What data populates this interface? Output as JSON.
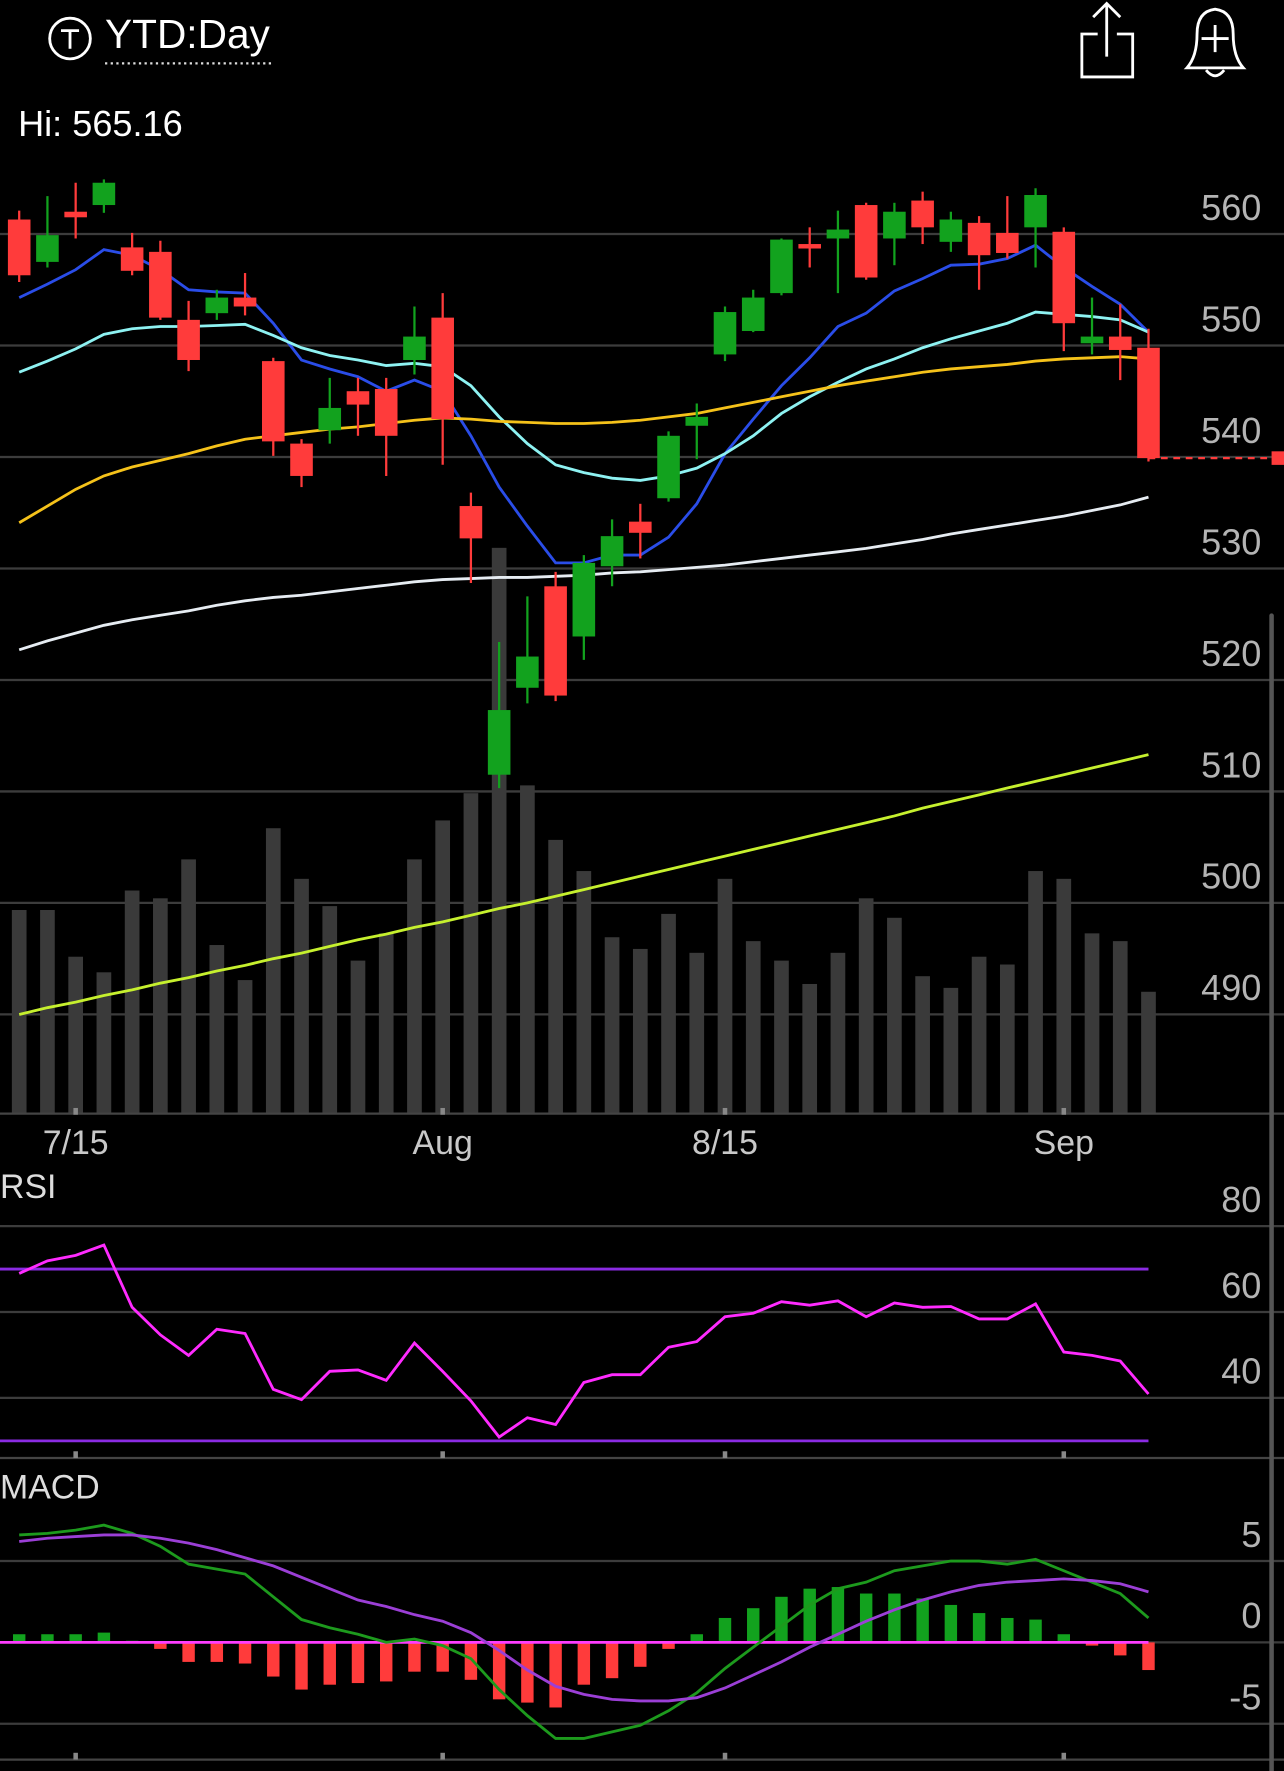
{
  "header": {
    "timeframe": "YTD:Day",
    "high_label": "Hi: 565.16"
  },
  "chart_data": [
    {
      "type": "candlestick",
      "categories": [
        null,
        null,
        "7/15",
        null,
        null,
        null,
        null,
        null,
        null,
        null,
        null,
        null,
        null,
        null,
        null,
        "Aug",
        null,
        null,
        null,
        null,
        null,
        null,
        null,
        null,
        null,
        "8/15",
        null,
        null,
        null,
        null,
        null,
        null,
        null,
        null,
        null,
        null,
        null,
        "Sep",
        null,
        null,
        null
      ],
      "open": [
        561.3,
        557.5,
        562.0,
        562.6,
        558.8,
        558.4,
        552.3,
        552.9,
        554.3,
        548.6,
        541.2,
        542.4,
        545.9,
        546.1,
        548.7,
        552.5,
        535.6,
        511.5,
        519.3,
        528.4,
        523.9,
        530.2,
        534.2,
        536.3,
        542.8,
        549.2,
        551.3,
        554.7,
        559.1,
        559.6,
        562.6,
        559.6,
        563.0,
        559.3,
        561.0,
        560.1,
        560.6,
        560.2,
        550.2,
        550.8,
        549.8
      ],
      "high": [
        562.1,
        563.4,
        564.6,
        564.9,
        560.1,
        559.4,
        554.0,
        555.0,
        556.5,
        548.9,
        541.6,
        547.1,
        547.1,
        547.1,
        553.5,
        554.7,
        536.8,
        523.4,
        527.5,
        529.7,
        531.2,
        534.4,
        535.8,
        542.3,
        544.8,
        553.5,
        555.0,
        559.6,
        560.6,
        562.1,
        562.8,
        562.8,
        563.8,
        562.0,
        561.6,
        563.4,
        564.1,
        560.6,
        554.3,
        553.7,
        551.5
      ],
      "low": [
        555.7,
        557.0,
        559.6,
        561.9,
        556.3,
        552.3,
        547.7,
        552.3,
        552.7,
        540.1,
        537.3,
        541.2,
        541.9,
        538.3,
        547.4,
        539.3,
        528.7,
        510.3,
        517.9,
        518.1,
        521.8,
        528.4,
        530.9,
        536.0,
        539.8,
        548.6,
        551.2,
        554.5,
        557.0,
        554.7,
        555.9,
        557.2,
        559.1,
        558.4,
        555.0,
        557.8,
        557.0,
        549.5,
        549.2,
        546.9,
        539.6
      ],
      "close": [
        556.3,
        559.9,
        561.5,
        564.6,
        556.7,
        552.5,
        548.7,
        554.3,
        553.5,
        541.4,
        538.3,
        544.4,
        544.7,
        541.9,
        550.8,
        543.4,
        532.7,
        517.3,
        522.1,
        518.6,
        530.5,
        532.9,
        533.2,
        541.9,
        543.6,
        553.0,
        554.3,
        559.5,
        558.7,
        560.4,
        556.1,
        562.0,
        560.6,
        561.3,
        558.1,
        558.3,
        563.5,
        552.0,
        550.8,
        549.6,
        539.9
      ],
      "up_color": "#12a21e",
      "down_color": "#ff3b3b",
      "overlays": [
        {
          "color": "#2a4de8",
          "values": [
            554.3,
            555.5,
            556.8,
            558.6,
            558.1,
            556.8,
            555.0,
            554.8,
            554.7,
            552.0,
            548.7,
            547.9,
            547.2,
            545.9,
            546.9,
            545.9,
            541.9,
            537.3,
            533.8,
            530.5,
            530.5,
            531.2,
            531.2,
            532.8,
            535.8,
            540.3,
            543.4,
            546.4,
            548.9,
            551.7,
            552.9,
            554.9,
            556.0,
            557.2,
            557.3,
            557.8,
            559.0,
            557.0,
            555.3,
            553.7,
            551.2
          ]
        },
        {
          "color": "#8ef2f2",
          "values": [
            547.6,
            548.6,
            549.7,
            551.0,
            551.5,
            551.7,
            551.7,
            551.8,
            551.9,
            550.9,
            549.8,
            549.1,
            548.7,
            548.2,
            548.4,
            548.1,
            546.4,
            543.6,
            541.2,
            539.3,
            538.6,
            538.1,
            537.9,
            538.3,
            539.0,
            540.3,
            541.9,
            543.9,
            545.4,
            546.7,
            547.9,
            548.8,
            549.8,
            550.6,
            551.3,
            552.0,
            553.0,
            552.8,
            552.6,
            552.3,
            551.2
          ]
        },
        {
          "color": "#f5c21a",
          "values": [
            534.1,
            535.6,
            537.1,
            538.3,
            539.1,
            539.7,
            540.3,
            541.0,
            541.6,
            541.9,
            542.2,
            542.5,
            542.7,
            543.0,
            543.3,
            543.5,
            543.4,
            543.2,
            543.1,
            543.0,
            543.0,
            543.1,
            543.3,
            543.6,
            543.9,
            544.4,
            544.9,
            545.4,
            545.9,
            546.4,
            546.8,
            547.2,
            547.6,
            547.9,
            548.1,
            548.3,
            548.6,
            548.8,
            548.9,
            549.0,
            548.8
          ]
        },
        {
          "color": "#e6ecf2",
          "values": [
            522.7,
            523.5,
            524.2,
            524.9,
            525.4,
            525.8,
            526.2,
            526.7,
            527.1,
            527.4,
            527.6,
            527.9,
            528.2,
            528.5,
            528.8,
            529.0,
            529.1,
            529.2,
            529.2,
            529.3,
            529.4,
            529.6,
            529.7,
            529.9,
            530.1,
            530.3,
            530.6,
            530.9,
            531.2,
            531.5,
            531.8,
            532.2,
            532.6,
            533.1,
            533.5,
            533.9,
            534.3,
            534.7,
            535.2,
            535.7,
            536.4
          ]
        },
        {
          "color": "#c6f02e",
          "values": [
            490.0,
            490.6,
            491.1,
            491.7,
            492.2,
            492.8,
            493.3,
            493.9,
            494.4,
            495.0,
            495.5,
            496.1,
            496.7,
            497.2,
            497.8,
            498.3,
            498.9,
            499.5,
            500.0,
            500.6,
            501.2,
            501.8,
            502.4,
            503.0,
            503.6,
            504.2,
            504.8,
            505.4,
            506.0,
            506.6,
            507.2,
            507.8,
            508.5,
            509.1,
            509.7,
            510.3,
            510.9,
            511.5,
            512.1,
            512.7,
            513.3
          ]
        }
      ],
      "volume": {
        "color": "#3a3a3a",
        "values": [
          52,
          52,
          40,
          36,
          57,
          55,
          65,
          43,
          34,
          73,
          60,
          53,
          39,
          46,
          65,
          75,
          82,
          145,
          84,
          70,
          62,
          45,
          42,
          51,
          41,
          60,
          44,
          39,
          33,
          41,
          55,
          50,
          35,
          32,
          40,
          38,
          62,
          60,
          46,
          44,
          31
        ]
      },
      "ylim": [
        481,
        567
      ],
      "yticks": [
        490,
        500,
        510,
        520,
        530,
        540,
        550,
        560
      ],
      "grid": true
    },
    {
      "type": "line",
      "title": "RSI",
      "series": [
        {
          "color": "#ff2bff",
          "values": [
            69.0,
            71.9,
            73.2,
            75.6,
            61.1,
            54.7,
            49.9,
            56.0,
            55.0,
            42.0,
            39.6,
            46.2,
            46.5,
            44.1,
            52.8,
            46.2,
            39.3,
            30.9,
            35.4,
            33.8,
            43.6,
            45.4,
            45.4,
            51.8,
            53.1,
            58.9,
            59.7,
            62.4,
            61.6,
            62.6,
            58.9,
            62.1,
            61.1,
            61.3,
            58.4,
            58.4,
            61.9,
            50.7,
            49.9,
            48.6,
            40.9
          ]
        }
      ],
      "levels": [
        70,
        30
      ],
      "level_color": "#8a2be2",
      "ylim": [
        26,
        92
      ],
      "yticks": [
        40,
        60,
        80
      ],
      "grid": true
    },
    {
      "type": "macd",
      "title": "MACD",
      "series": [
        {
          "color": "#1d9a1d",
          "values": [
            6.6,
            6.7,
            6.9,
            7.2,
            6.7,
            5.9,
            4.8,
            4.5,
            4.2,
            2.8,
            1.4,
            0.9,
            0.5,
            0.0,
            0.2,
            -0.2,
            -1.0,
            -2.9,
            -4.5,
            -5.9,
            -5.9,
            -5.5,
            -5.1,
            -4.2,
            -3.1,
            -1.6,
            -0.3,
            1.0,
            2.3,
            3.3,
            3.7,
            4.4,
            4.7,
            5.0,
            5.0,
            4.8,
            5.1,
            4.4,
            3.7,
            3.0,
            1.5
          ]
        },
        {
          "color": "#9b3fd6",
          "values": [
            6.2,
            6.4,
            6.5,
            6.6,
            6.6,
            6.4,
            6.1,
            5.7,
            5.2,
            4.7,
            4.0,
            3.3,
            2.6,
            2.2,
            1.7,
            1.3,
            0.6,
            -0.5,
            -1.7,
            -2.7,
            -3.2,
            -3.5,
            -3.6,
            -3.6,
            -3.4,
            -2.8,
            -2.0,
            -1.2,
            -0.3,
            0.5,
            1.3,
            2.0,
            2.6,
            3.1,
            3.5,
            3.7,
            3.8,
            3.9,
            3.8,
            3.6,
            3.1
          ]
        }
      ],
      "histogram": {
        "up_color": "#12a21e",
        "down_color": "#ff3b3b",
        "values": [
          0.5,
          0.5,
          0.5,
          0.6,
          0.1,
          -0.4,
          -1.2,
          -1.2,
          -1.3,
          -2.1,
          -2.9,
          -2.6,
          -2.5,
          -2.4,
          -1.8,
          -1.8,
          -2.3,
          -3.5,
          -3.7,
          -4.0,
          -2.6,
          -2.2,
          -1.5,
          -0.4,
          0.5,
          1.5,
          2.1,
          2.8,
          3.3,
          3.4,
          3.0,
          3.0,
          2.7,
          2.3,
          1.8,
          1.5,
          1.4,
          0.5,
          -0.2,
          -0.8,
          -1.7
        ]
      },
      "zero_color": "#ff3cff",
      "ylim": [
        -7.2,
        10.7
      ],
      "yticks": [
        -5,
        0,
        5
      ],
      "grid": true
    }
  ]
}
